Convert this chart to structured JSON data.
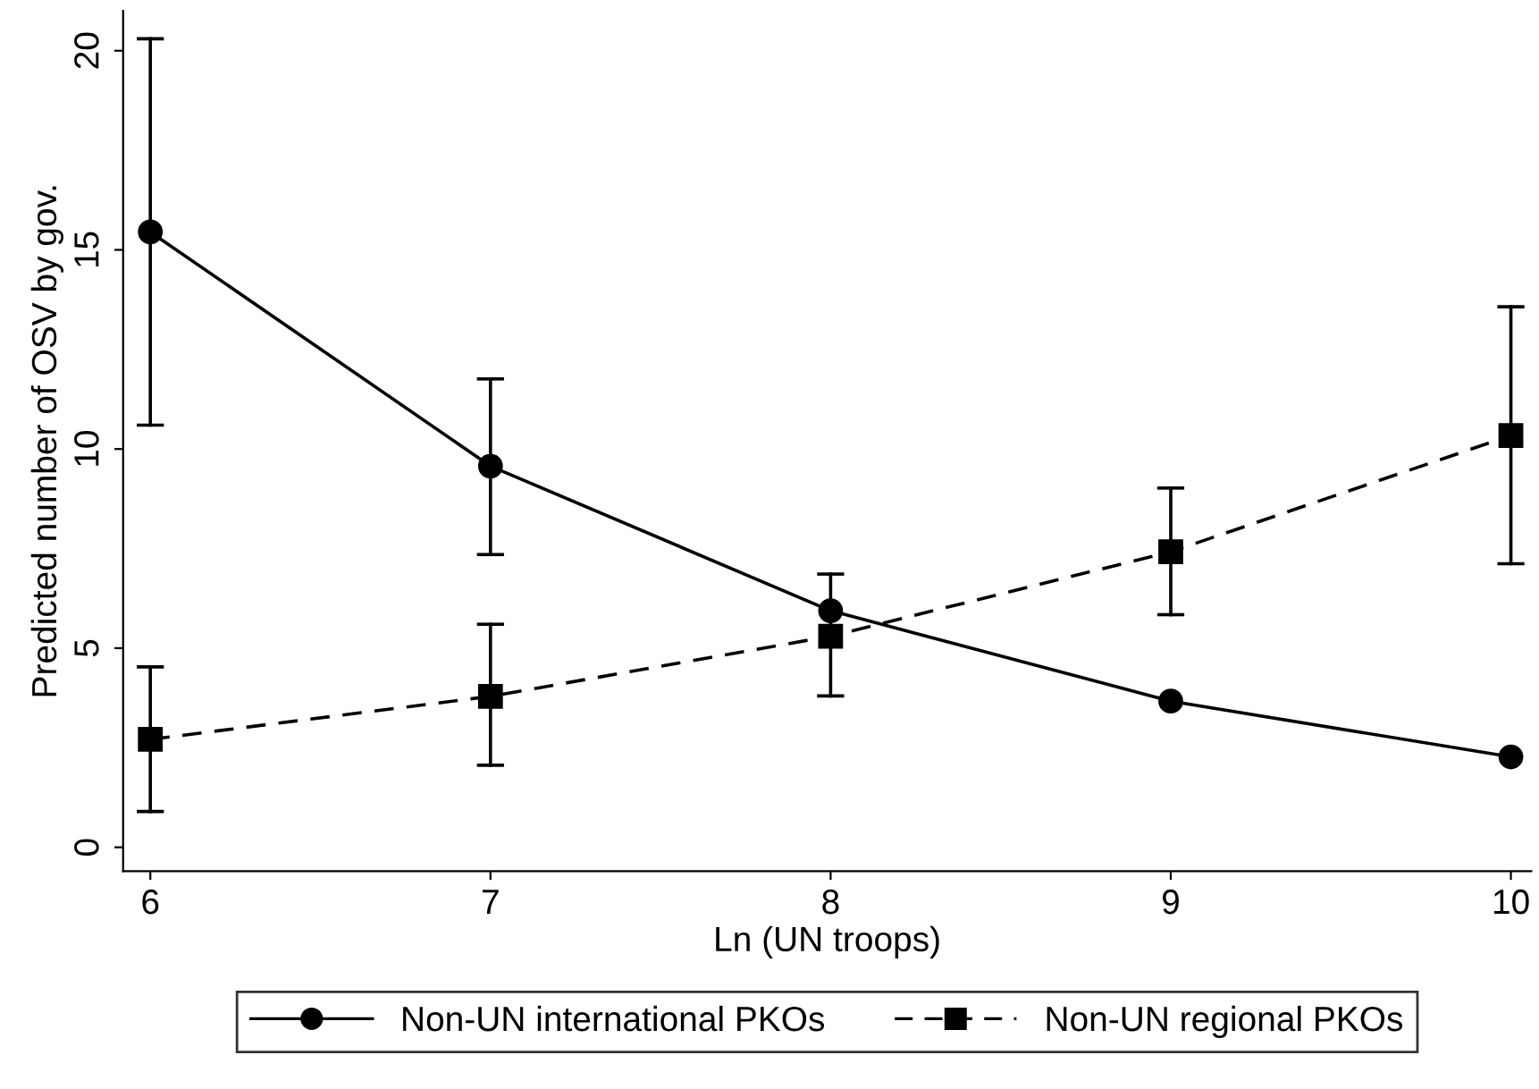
{
  "chart_data": {
    "type": "line",
    "xlabel": "Ln (UN troops)",
    "ylabel": "Predicted number of OSV by gov.",
    "x": [
      6,
      7,
      8,
      9,
      10
    ],
    "series": [
      {
        "name": "Non-UN international PKOs",
        "color": "#000000",
        "line_style": "solid",
        "marker": "circle",
        "values": [
          15.45,
          9.57,
          5.94,
          3.67,
          2.27
        ],
        "errors": [
          [
            10.6,
            20.3
          ],
          [
            7.35,
            11.76
          ],
          [
            3.8,
            6.86
          ],
          null,
          null
        ]
      },
      {
        "name": "Non-UN regional PKOs",
        "color": "#000000",
        "line_style": "dashed",
        "marker": "square",
        "values": [
          2.71,
          3.79,
          5.3,
          7.42,
          10.34
        ],
        "errors": [
          [
            0.9,
            4.53
          ],
          [
            2.06,
            5.6
          ],
          null,
          [
            5.84,
            9.02
          ],
          [
            7.12,
            13.57
          ]
        ]
      }
    ],
    "xlim": [
      5.92,
      10.06
    ],
    "ylim": [
      -0.6,
      21
    ],
    "xticks": [
      6,
      7,
      8,
      9,
      10
    ],
    "yticks": [
      0,
      5,
      10,
      15,
      20
    ],
    "grid": false,
    "legend": "bottom"
  }
}
